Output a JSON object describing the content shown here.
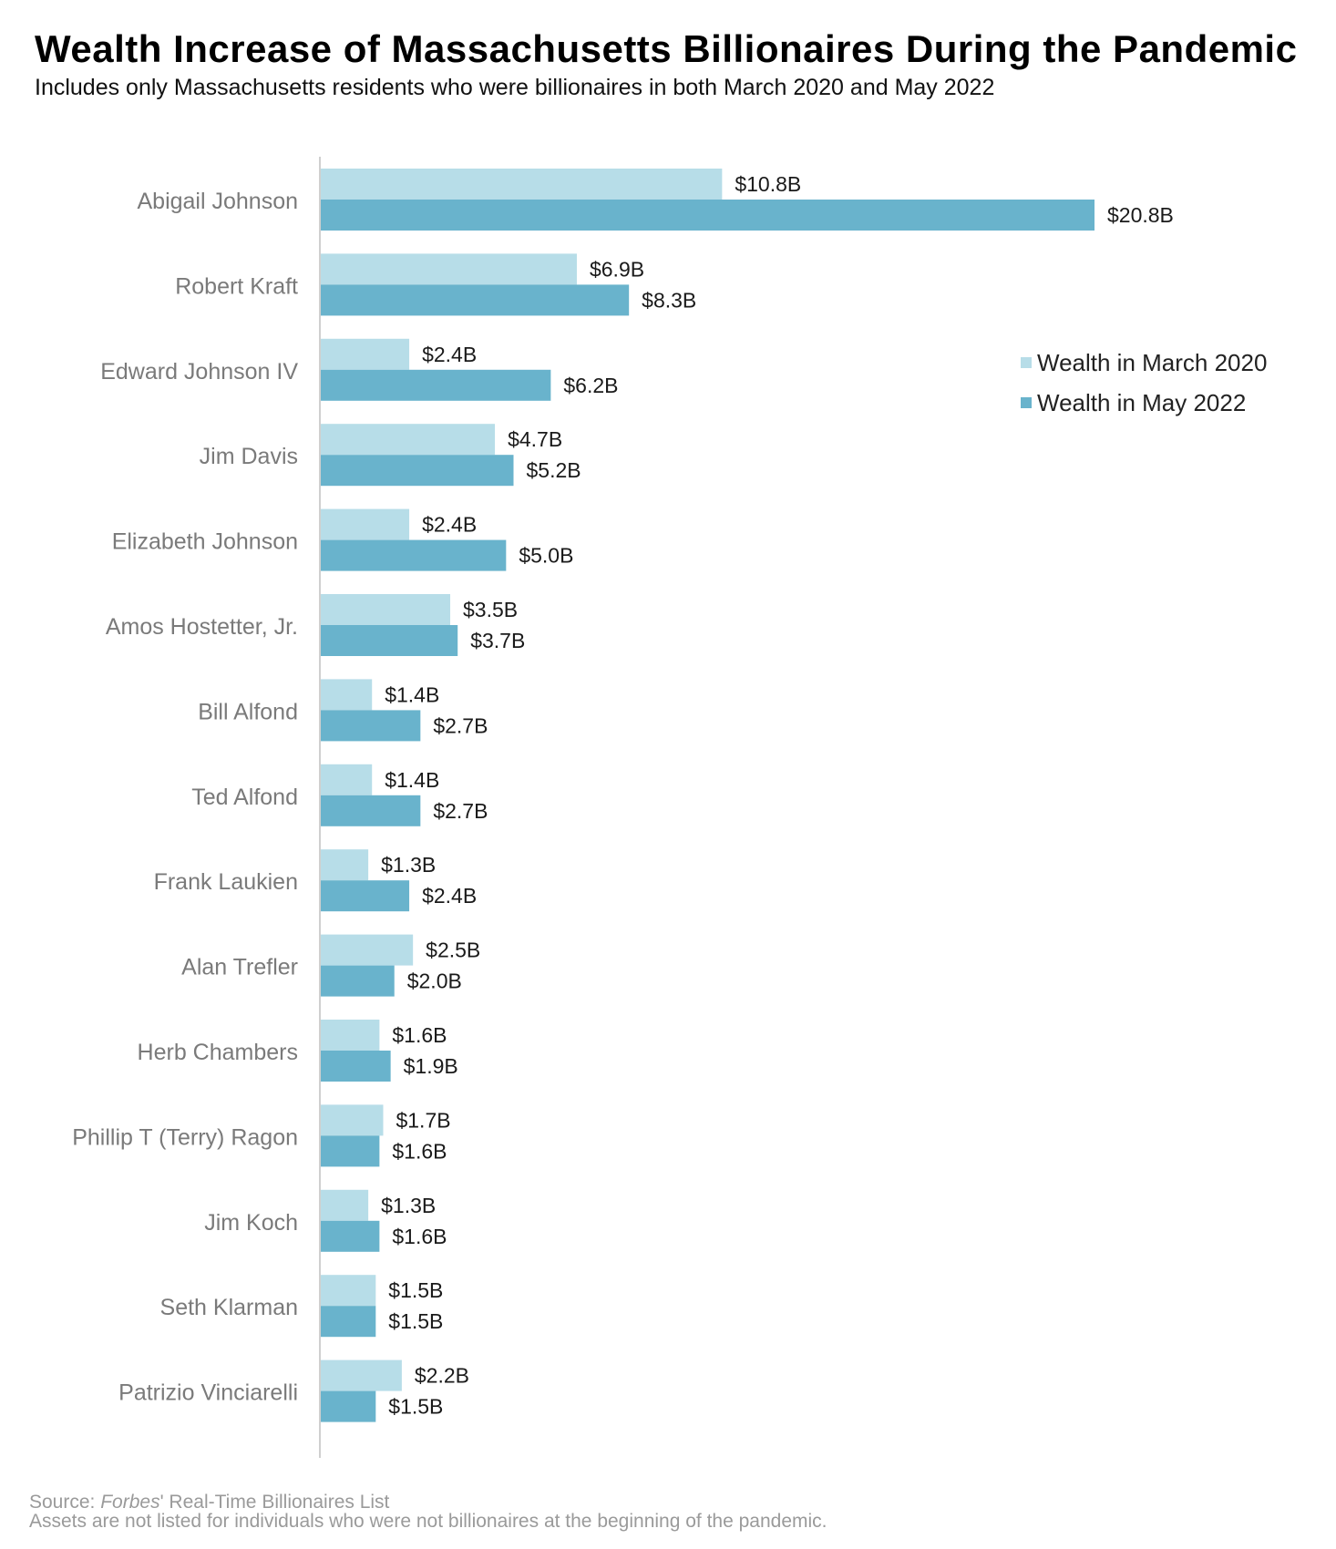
{
  "chart_data": {
    "type": "bar",
    "orientation": "horizontal",
    "title": "Wealth Increase of Massachusetts Billionaires During the Pandemic",
    "subtitle": "Includes only Massachusetts residents who were billionaires in both March 2020 and May 2022",
    "categories": [
      "Abigail Johnson",
      "Robert Kraft",
      "Edward Johnson IV",
      "Jim Davis",
      "Elizabeth Johnson",
      "Amos Hostetter, Jr.",
      "Bill Alfond",
      "Ted Alfond",
      "Frank Laukien",
      "Alan Trefler",
      "Herb Chambers",
      "Phillip T (Terry) Ragon",
      "Jim Koch",
      "Seth Klarman",
      "Patrizio Vinciarelli"
    ],
    "series": [
      {
        "name": "Wealth in March 2020",
        "color": "#b7dde8",
        "values": [
          10.8,
          6.9,
          2.4,
          4.7,
          2.4,
          3.5,
          1.4,
          1.4,
          1.3,
          2.5,
          1.6,
          1.7,
          1.3,
          1.5,
          2.2
        ],
        "labels": [
          "$10.8B",
          "$6.9B",
          "$2.4B",
          "$4.7B",
          "$2.4B",
          "$3.5B",
          "$1.4B",
          "$1.4B",
          "$1.3B",
          "$2.5B",
          "$1.6B",
          "$1.7B",
          "$1.3B",
          "$1.5B",
          "$2.2B"
        ]
      },
      {
        "name": "Wealth in May 2022",
        "color": "#69b3cc",
        "values": [
          20.8,
          8.3,
          6.2,
          5.2,
          5.0,
          3.7,
          2.7,
          2.7,
          2.4,
          2.0,
          1.9,
          1.6,
          1.6,
          1.5,
          1.5
        ],
        "labels": [
          "$20.8B",
          "$8.3B",
          "$6.2B",
          "$5.2B",
          "$5.0B",
          "$3.7B",
          "$2.7B",
          "$2.7B",
          "$2.4B",
          "$2.0B",
          "$1.9B",
          "$1.6B",
          "$1.6B",
          "$1.5B",
          "$1.5B"
        ]
      }
    ],
    "xlim": [
      0,
      20.8
    ],
    "grid": false,
    "legend_position": "right"
  },
  "footer": {
    "source_prefix": "Source: ",
    "source_italic": "Forbes",
    "source_suffix": "' Real-Time Billionaires List",
    "note": "Assets are not listed for individuals who were not billionaires at the beginning of the pandemic."
  }
}
